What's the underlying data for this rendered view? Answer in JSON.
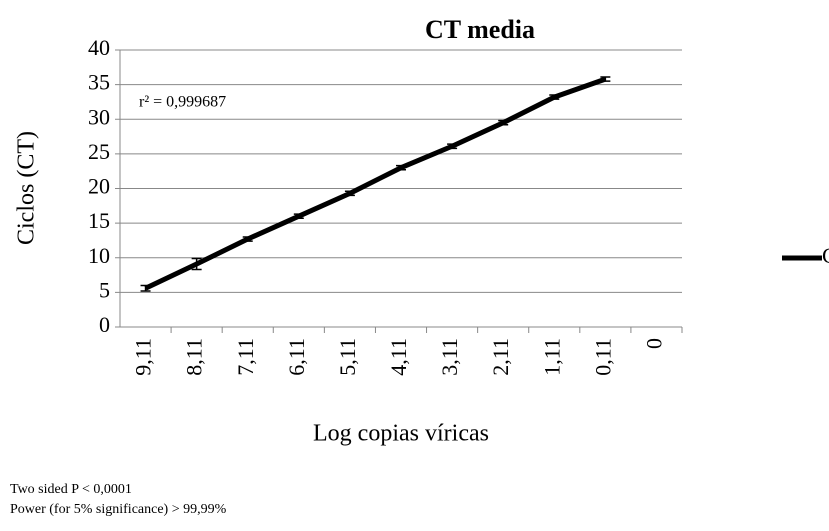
{
  "chart_data": {
    "type": "line",
    "title": "CT media",
    "y_label": "Ciclos  (CT)",
    "x_label": "Log copias víricas",
    "annotation": "r² = 0,999687",
    "footnotes": [
      "Two sided P < 0,0001",
      "Power (for 5% significance) > 99,99%"
    ],
    "categories": [
      "9,11",
      "8,11",
      "7,11",
      "6,11",
      "5,11",
      "4,11",
      "3,11",
      "2,11",
      "1,11",
      "0,11",
      "0"
    ],
    "series": [
      {
        "name": "CT",
        "color": "#000000",
        "values": [
          5.6,
          9.1,
          12.7,
          16.0,
          19.3,
          23.0,
          26.1,
          29.5,
          33.2,
          35.8,
          null
        ],
        "errors": [
          0.4,
          0.8,
          0.3,
          0.3,
          0.3,
          0.3,
          0.3,
          0.3,
          0.3,
          0.3,
          null
        ]
      }
    ],
    "ylim": [
      0,
      40
    ],
    "yticks": [
      0,
      5,
      10,
      15,
      20,
      25,
      30,
      35,
      40
    ],
    "grid": true,
    "legend": "right"
  }
}
